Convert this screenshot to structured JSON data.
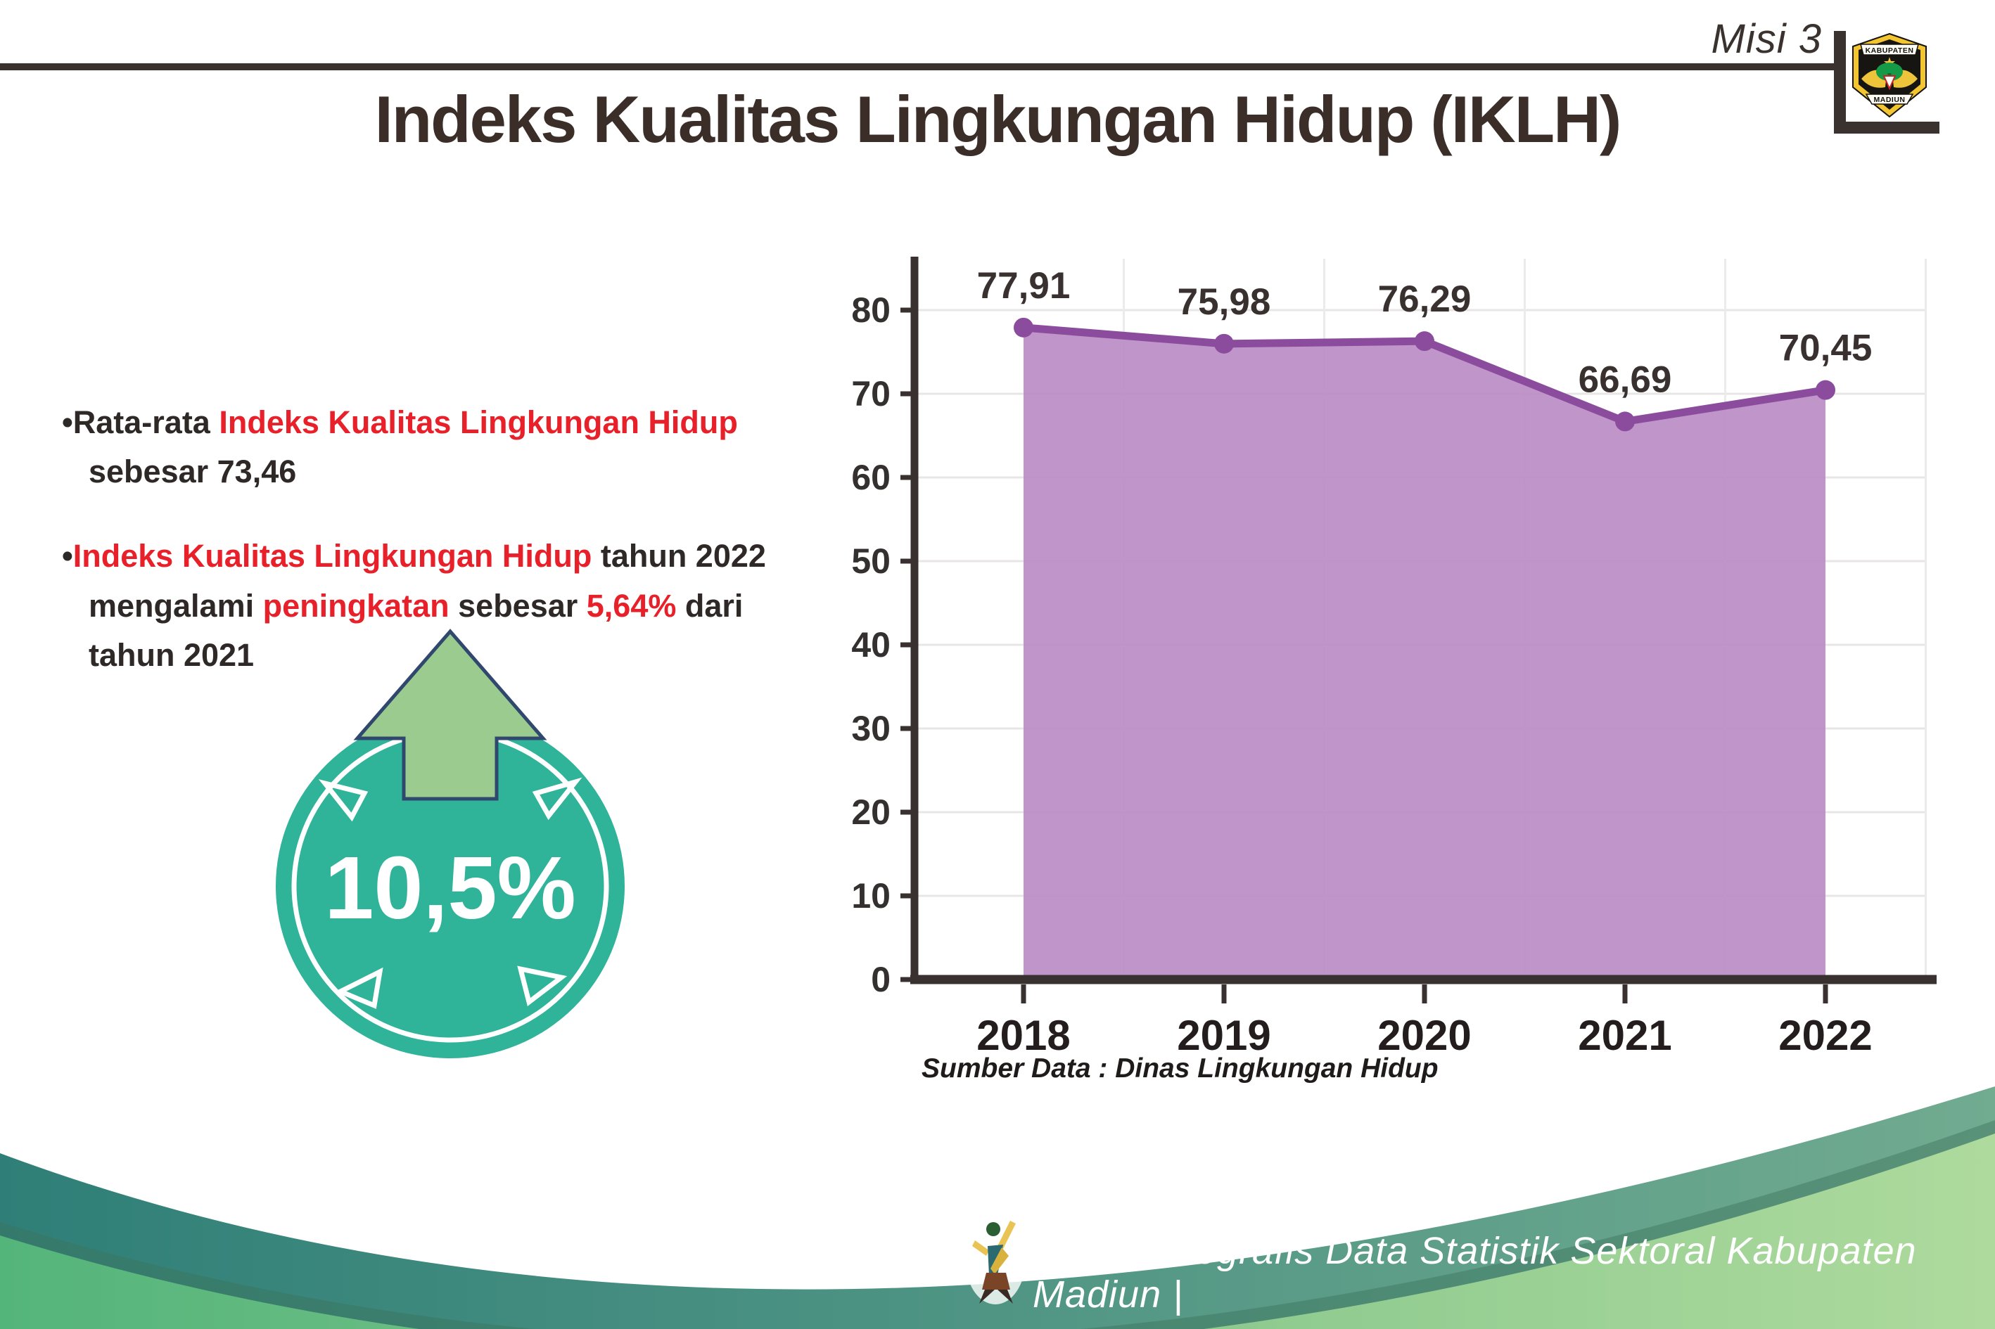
{
  "header": {
    "misi_label": "Misi 3",
    "logo_top": "KABUPATEN",
    "logo_bottom": "MADIUN"
  },
  "title": "Indeks Kualitas Lingkungan Hidup (IKLH)",
  "insights": {
    "bullet1": {
      "lead": "Rata-rata ",
      "highlight": "Indeks Kualitas Lingkungan Hidup",
      "line2": "sebesar 73,46"
    },
    "bullet2": {
      "highlight1": "Indeks Kualitas Lingkungan Hidup",
      "after1": " tahun 2022",
      "line2_pre": "mengalami ",
      "highlight2": "peningkatan",
      "line2_mid": " sebesar ",
      "highlight3": "5,64%",
      "line2_post": " dari",
      "line3": "tahun 2021"
    }
  },
  "badge": {
    "value": "10,5%",
    "circle_color": "#2fb399",
    "arrow_color": "#9ccb90"
  },
  "chart_data": {
    "type": "area",
    "categories": [
      "2018",
      "2019",
      "2020",
      "2021",
      "2022"
    ],
    "values": [
      77.91,
      75.98,
      76.29,
      66.69,
      70.45
    ],
    "labels": [
      "77,91",
      "75,98",
      "76,29",
      "66,69",
      "70,45"
    ],
    "title": "Indeks Kualitas Lingkungan Hidup (IKLH)",
    "xlabel": "",
    "ylabel": "",
    "ylim": [
      0,
      85
    ],
    "yticks": [
      0,
      10,
      20,
      30,
      40,
      50,
      60,
      70,
      80
    ],
    "grid": true,
    "legend": false,
    "line_color": "#8b4c9e",
    "fill_color": "#ba8cc5",
    "source": "Sumber Data : Dinas Lingkungan Hidup"
  },
  "footer": {
    "credit": "Media Infografis Data Statistik Sektoral Kabupaten Madiun |"
  }
}
